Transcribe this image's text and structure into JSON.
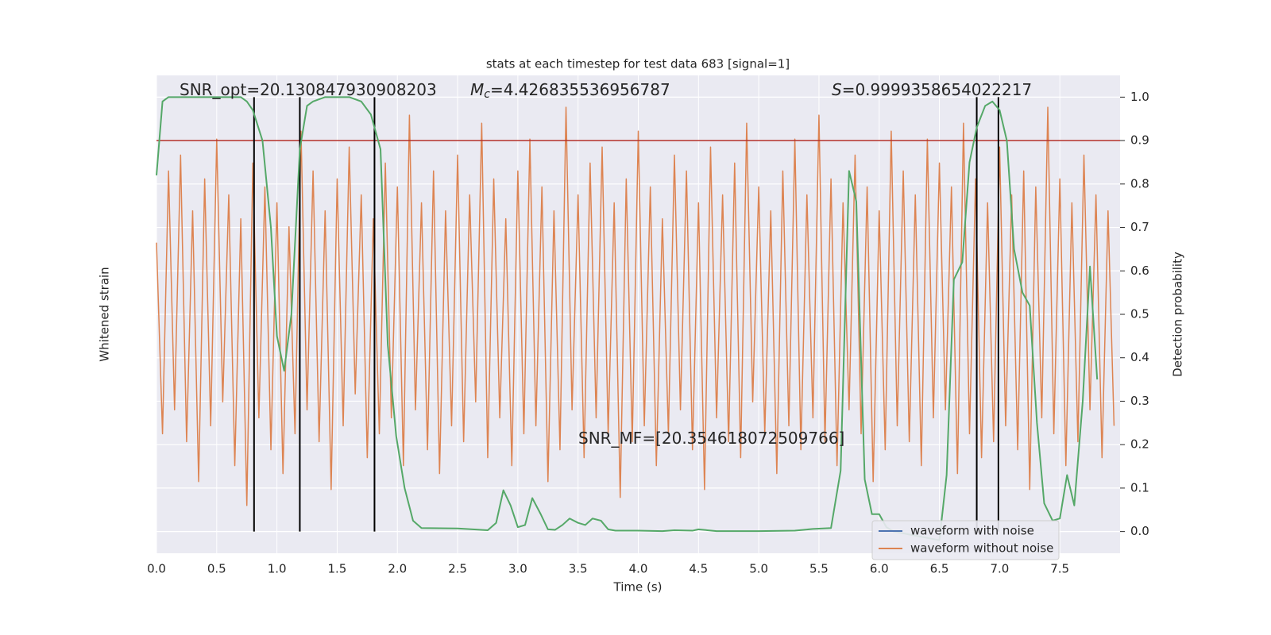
{
  "chart_data": {
    "type": "line",
    "title": "stats at each timestep for test data 683 [signal=1]",
    "xlabel": "Time (s)",
    "ylabel": "Whitened strain",
    "y2label": "Detection probability",
    "xlim": [
      0,
      8.0
    ],
    "xticks": [
      {
        "value": 0,
        "label": "0.0"
      },
      0.5,
      {
        "value": 1,
        "label": "1.0"
      },
      1.5,
      {
        "value": 2,
        "label": "2.0"
      },
      2.5,
      {
        "value": 3,
        "label": "3.0"
      },
      3.5,
      {
        "value": 4,
        "label": "4.0"
      },
      4.5,
      {
        "value": 5,
        "label": "5.0"
      },
      5.5,
      {
        "value": 6,
        "label": "6.0"
      },
      6.5,
      {
        "value": 7,
        "label": "7.0"
      },
      7.5
    ],
    "ylim": [
      -3,
      3
    ],
    "y2lim": [
      -0.05,
      1.05
    ],
    "y2ticks": [
      {
        "value": 0,
        "label": "0.0"
      },
      0.1,
      0.2,
      0.3,
      0.4,
      0.5,
      0.6,
      0.7,
      0.8,
      0.9,
      {
        "value": 1,
        "label": "1.0"
      }
    ],
    "grid": true,
    "legend": "lower right",
    "series": [
      {
        "name": "waveform with noise",
        "color": "#4c72b0"
      },
      {
        "name": "waveform without noise",
        "color": "#dd8452",
        "axis": "y",
        "x": [
          0,
          0.05,
          0.1,
          0.15,
          0.2,
          0.25,
          0.3,
          0.35,
          0.4,
          0.45,
          0.5,
          0.55,
          0.6,
          0.65,
          0.7,
          0.75,
          0.8,
          0.85,
          0.9,
          0.95,
          1,
          1.05,
          1.1,
          1.15,
          1.2,
          1.25,
          1.3,
          1.35,
          1.4,
          1.45,
          1.5,
          1.55,
          1.6,
          1.65,
          1.7,
          1.75,
          1.8,
          1.85,
          1.9,
          1.95,
          2,
          2.05,
          2.1,
          2.15,
          2.2,
          2.25,
          2.3,
          2.35,
          2.4,
          2.45,
          2.5,
          2.55,
          2.6,
          2.65,
          2.7,
          2.75,
          2.8,
          2.85,
          2.9,
          2.95,
          3,
          3.05,
          3.1,
          3.15,
          3.2,
          3.25,
          3.3,
          3.35,
          3.4,
          3.45,
          3.5,
          3.55,
          3.6,
          3.65,
          3.7,
          3.75,
          3.8,
          3.85,
          3.9,
          3.95,
          4,
          4.05,
          4.1,
          4.15,
          4.2,
          4.25,
          4.3,
          4.35,
          4.4,
          4.45,
          4.5,
          4.55,
          4.6,
          4.65,
          4.7,
          4.75,
          4.8,
          4.85,
          4.9,
          4.95,
          5,
          5.05,
          5.1,
          5.15,
          5.2,
          5.25,
          5.3,
          5.35,
          5.4,
          5.45,
          5.5,
          5.55,
          5.6,
          5.65,
          5.7,
          5.75,
          5.8,
          5.85,
          5.9,
          5.95,
          6,
          6.05,
          6.1,
          6.15,
          6.2,
          6.25,
          6.3,
          6.35,
          6.4,
          6.45,
          6.5,
          6.55,
          6.6,
          6.65,
          6.7,
          6.75,
          6.8,
          6.85,
          6.9,
          6.95,
          7,
          7.05,
          7.1,
          7.15,
          7.2,
          7.25,
          7.3,
          7.35,
          7.4,
          7.45,
          7.5,
          7.55,
          7.6,
          7.65,
          7.7,
          7.75,
          7.8,
          7.85,
          7.9,
          7.95
        ],
        "values": [
          0.9,
          -1.5,
          1.8,
          -1.2,
          2.0,
          -1.6,
          1.3,
          -2.1,
          1.7,
          -1.4,
          2.2,
          -1.1,
          1.5,
          -1.9,
          1.2,
          -2.4,
          1.9,
          -1.3,
          1.6,
          -1.7,
          1.4,
          -2.0,
          1.1,
          -1.5,
          2.3,
          -1.2,
          1.8,
          -1.6,
          1.3,
          -2.2,
          1.7,
          -1.4,
          2.1,
          -1.0,
          1.5,
          -1.8,
          1.2,
          -1.5,
          1.9,
          -1.3,
          1.6,
          -1.9,
          2.5,
          -1.2,
          1.4,
          -1.7,
          1.8,
          -2.0,
          1.3,
          -1.4,
          2.0,
          -1.6,
          1.5,
          -1.1,
          2.4,
          -1.8,
          1.7,
          -1.3,
          1.2,
          -1.9,
          1.8,
          -1.5,
          2.2,
          -1.4,
          1.6,
          -2.1,
          1.3,
          -1.7,
          2.6,
          -1.2,
          1.5,
          -1.8,
          1.9,
          -1.3,
          2.1,
          -1.5,
          1.4,
          -2.3,
          1.7,
          -1.6,
          2.3,
          -1.4,
          1.6,
          -1.9,
          1.2,
          -1.5,
          2.0,
          -1.2,
          1.8,
          -1.7,
          1.4,
          -2.2,
          2.1,
          -1.3,
          1.5,
          -1.6,
          1.9,
          -1.8,
          2.4,
          -1.1,
          1.6,
          -1.5,
          1.3,
          -2.0,
          1.8,
          -1.4,
          2.2,
          -1.7,
          1.5,
          -1.3,
          2.5,
          -1.6,
          1.7,
          -1.9,
          1.4,
          -1.2,
          2.0,
          -1.5,
          1.6,
          -2.1,
          1.3,
          -1.7,
          2.3,
          -1.4,
          1.8,
          -1.6,
          1.5,
          -1.9,
          2.2,
          -1.3,
          1.9,
          -1.2,
          1.6,
          -2.0,
          2.4,
          -1.5,
          1.7,
          -1.8,
          1.4,
          -1.6,
          2.1,
          -1.4,
          1.5,
          -1.7,
          1.8,
          -2.2,
          1.6,
          -1.3,
          2.6,
          -1.5,
          1.7,
          -1.9,
          1.4,
          -1.6,
          2.0,
          -1.2,
          1.5,
          -1.8,
          1.3,
          -1.4
        ]
      },
      {
        "color": "#55a868",
        "axis": "y2",
        "x": [
          0,
          0.05,
          0.1,
          0.7,
          0.75,
          0.8,
          0.88,
          0.95,
          1.0,
          1.06,
          1.12,
          1.19,
          1.25,
          1.3,
          1.4,
          1.6,
          1.7,
          1.78,
          1.86,
          1.92,
          1.99,
          2.06,
          2.13,
          2.2,
          2.5,
          2.75,
          2.82,
          2.88,
          2.94,
          3.0,
          3.06,
          3.12,
          3.19,
          3.25,
          3.31,
          3.37,
          3.43,
          3.5,
          3.56,
          3.62,
          3.69,
          3.75,
          3.81,
          4.0,
          4.2,
          4.3,
          4.45,
          4.5,
          4.65,
          5.0,
          5.3,
          5.45,
          5.6,
          5.68,
          5.75,
          5.81,
          5.88,
          5.94,
          6.0,
          6.06,
          6.12,
          6.5,
          6.56,
          6.62,
          6.69,
          6.75,
          6.81,
          6.88,
          6.94,
          7.0,
          7.06,
          7.12,
          7.19,
          7.25,
          7.31,
          7.37,
          7.44,
          7.5,
          7.56,
          7.62,
          7.69,
          7.75,
          7.81
        ],
        "values": [
          0.82,
          0.99,
          1.0,
          1.0,
          0.99,
          0.97,
          0.9,
          0.7,
          0.45,
          0.37,
          0.5,
          0.88,
          0.98,
          0.99,
          1.0,
          1.0,
          0.99,
          0.96,
          0.88,
          0.43,
          0.22,
          0.1,
          0.025,
          0.008,
          0.007,
          0.003,
          0.02,
          0.095,
          0.06,
          0.01,
          0.015,
          0.077,
          0.04,
          0.005,
          0.004,
          0.015,
          0.03,
          0.02,
          0.015,
          0.03,
          0.025,
          0.005,
          0.002,
          0.002,
          0.001,
          0.003,
          0.002,
          0.005,
          0.001,
          0.001,
          0.002,
          0.006,
          0.008,
          0.14,
          0.83,
          0.76,
          0.12,
          0.04,
          0.04,
          0.01,
          0.0,
          -0.02,
          0.13,
          0.58,
          0.62,
          0.85,
          0.93,
          0.98,
          0.99,
          0.97,
          0.9,
          0.65,
          0.55,
          0.52,
          0.25,
          0.065,
          0.025,
          0.03,
          0.13,
          0.06,
          0.3,
          0.61,
          0.35
        ]
      }
    ],
    "threshold": {
      "value": 0.9,
      "color": "#b5302a"
    },
    "vlines": {
      "values": [
        0.81,
        1.19,
        1.81,
        6.81,
        6.99
      ],
      "color": "#000000"
    },
    "annotations": [
      {
        "text": "SNR_opt=20.130847930908203"
      },
      {
        "symbol": "M",
        "subscript": "c",
        "text": "=4.426835536956787"
      },
      {
        "symbol": "S",
        "text": "=0.9999358654022217"
      },
      {
        "text": "SNR_MF=[20.354618072509766]"
      }
    ]
  }
}
